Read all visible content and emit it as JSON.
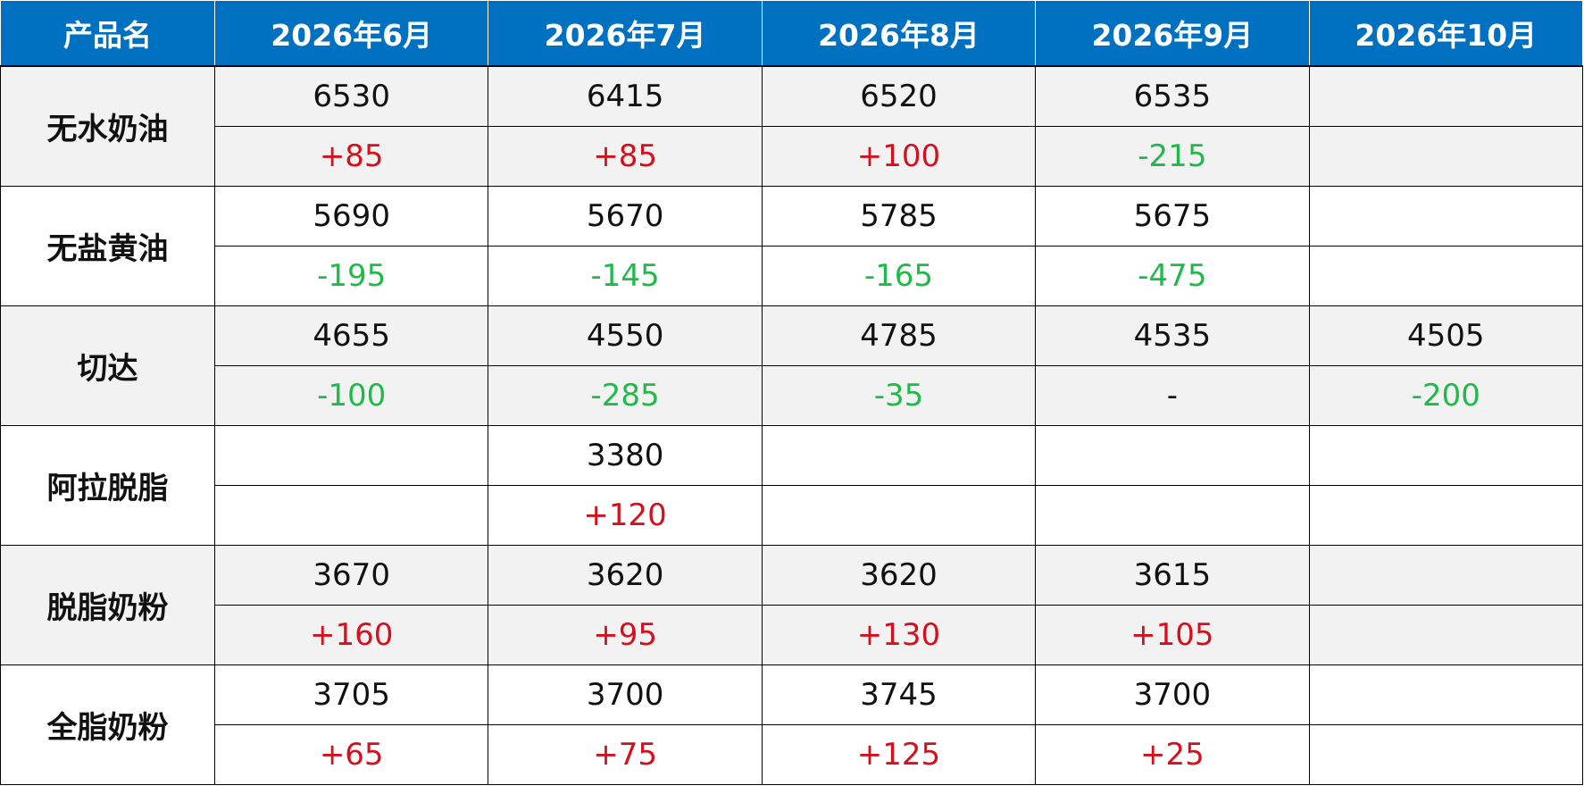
{
  "table": {
    "header": [
      "产品名",
      "2026年6月",
      "2026年7月",
      "2026年8月",
      "2026年9月",
      "2026年10月"
    ],
    "rows": [
      {
        "product": "无水奶油",
        "prices": [
          6530,
          6415,
          6520,
          6535,
          null
        ],
        "changes": [
          "+85",
          "+85",
          "+100",
          "-215",
          null
        ]
      },
      {
        "product": "无盐黄油",
        "prices": [
          5690,
          5670,
          5785,
          5675,
          null
        ],
        "changes": [
          "-195",
          "-145",
          "-165",
          "-475",
          null
        ]
      },
      {
        "product": "切达",
        "prices": [
          4655,
          4550,
          4785,
          4535,
          4505
        ],
        "changes": [
          "-100",
          "-285",
          "-35",
          "-",
          "-200"
        ]
      },
      {
        "product": "阿拉脱脂",
        "prices": [
          null,
          3380,
          null,
          null,
          null
        ],
        "changes": [
          null,
          "+120",
          null,
          null,
          null
        ]
      },
      {
        "product": "脱脂奶粉",
        "prices": [
          3670,
          3620,
          3620,
          3615,
          null
        ],
        "changes": [
          "+160",
          "+95",
          "+130",
          "+105",
          null
        ]
      },
      {
        "product": "全脂奶粉",
        "prices": [
          3705,
          3700,
          3745,
          3700,
          null
        ],
        "changes": [
          "+65",
          "+75",
          "+125",
          "+25",
          null
        ]
      }
    ]
  }
}
